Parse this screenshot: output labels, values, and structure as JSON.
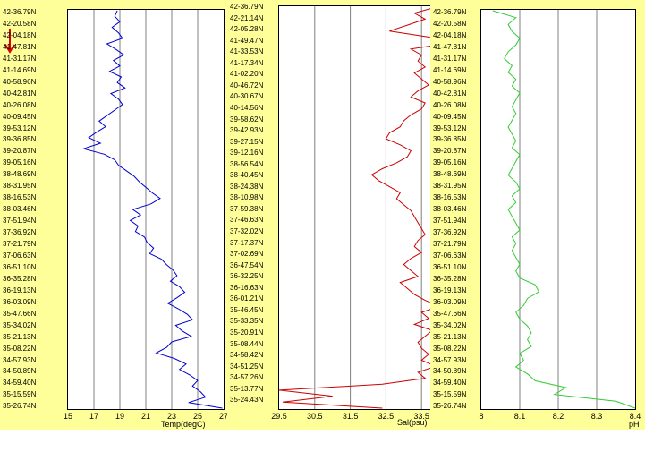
{
  "latitude_labels": [
    "42-36.79N",
    "42-20.58N",
    "42-04.18N",
    "41-47.81N",
    "41-31.17N",
    "41-14.69N",
    "40-58.96N",
    "40-42.81N",
    "40-26.08N",
    "40-09.45N",
    "39-53.12N",
    "39-36.85N",
    "39-20.87N",
    "39-05.16N",
    "38-48.69N",
    "38-31.95N",
    "38-16.53N",
    "38-03.46N",
    "37-51.94N",
    "37-36.92N",
    "37-21.79N",
    "37-06.63N",
    "36-51.10N",
    "36-35.28N",
    "36-19.13N",
    "36-03.09N",
    "35-47.66N",
    "35-34.02N",
    "35-21.13N",
    "35-08.22N",
    "34-57.93N",
    "34-50.89N",
    "34-59.40N",
    "35-15.59N",
    "35-26.74N"
  ],
  "latitude_labels_sal": [
    "42-36.79N",
    "42-21.14N",
    "42-05.28N",
    "41-49.47N",
    "41-33.53N",
    "41-17.34N",
    "41-02.20N",
    "40-46.72N",
    "40-30.67N",
    "40-14.56N",
    "39-58.62N",
    "39-42.93N",
    "39-27.15N",
    "39-12.16N",
    "38-56.54N",
    "38-40.45N",
    "38-24.38N",
    "38-10.98N",
    "37-59.38N",
    "37-46.63N",
    "37-32.02N",
    "37-17.37N",
    "37-02.69N",
    "36-47.54N",
    "36-32.25N",
    "36-16.63N",
    "36-01.21N",
    "35-46.45N",
    "35-33.35N",
    "35-20.91N",
    "35-08.44N",
    "34-58.42N",
    "34-51.25N",
    "34-57.26N",
    "35-13.77N",
    "35-24.43N"
  ],
  "chart_data": [
    {
      "type": "line",
      "xlabel": "Temp(degC)",
      "xlim": [
        15,
        27
      ],
      "xticks": [
        "15",
        "17",
        "19",
        "21",
        "23",
        "25",
        "27"
      ],
      "color": "#0000cc",
      "series": [
        {
          "values": [
            18.8,
            18.6,
            19.0,
            18.4,
            18.9,
            19.2,
            18.0,
            18.7,
            19.3,
            18.5,
            19.0,
            18.2,
            19.1,
            18.8,
            19.4,
            18.3,
            18.9,
            19.2,
            18.6,
            18.0,
            17.4,
            17.9,
            17.2,
            16.6,
            17.5,
            16.2,
            17.8,
            18.6,
            18.9,
            19.5,
            20.1,
            20.5,
            21.0,
            21.5,
            22.1,
            21.4,
            20.0,
            20.6,
            19.8,
            20.4,
            20.2,
            20.9,
            21.1,
            21.6,
            21.3,
            22.2,
            22.6,
            23.1,
            23.4,
            22.9,
            23.6,
            24.0,
            23.4,
            22.7,
            23.5,
            24.2,
            24.6,
            23.3,
            23.8,
            24.5,
            23.0,
            22.6,
            21.8,
            23.2,
            24.1,
            23.6,
            24.4,
            25.0,
            24.6,
            25.2,
            25.6,
            24.3,
            26.9
          ]
        }
      ]
    },
    {
      "type": "line",
      "xlabel": "Sal(psu)",
      "xlim": [
        29.5,
        34.5
      ],
      "xticks": [
        "29.5",
        "30.5",
        "31.5",
        "32.5",
        "33.5",
        "34.5"
      ],
      "color": "#cc0000",
      "series": [
        {
          "values": [
            33.9,
            33.3,
            33.6,
            33.1,
            32.6,
            33.7,
            34.3,
            33.2,
            33.5,
            33.4,
            33.6,
            33.3,
            33.5,
            33.7,
            33.4,
            33.2,
            33.6,
            33.5,
            33.2,
            33.0,
            32.9,
            32.6,
            32.5,
            32.9,
            33.2,
            33.1,
            32.8,
            32.4,
            32.1,
            32.3,
            32.6,
            32.9,
            32.8,
            33.0,
            33.2,
            33.3,
            33.4,
            33.5,
            33.6,
            33.4,
            33.3,
            33.5,
            33.2,
            33.0,
            33.2,
            33.4,
            32.9,
            33.1,
            33.3,
            33.6,
            34.0,
            33.5,
            33.7,
            33.3,
            33.8,
            33.6,
            33.4,
            33.5,
            33.7,
            33.5,
            33.9,
            33.4,
            33.6,
            32.4,
            29.5,
            31.0,
            29.6,
            32.4
          ]
        }
      ]
    },
    {
      "type": "line",
      "xlabel": "pH",
      "xlim": [
        8,
        8.4
      ],
      "xticks": [
        "8",
        "8.1",
        "8.2",
        "8.3",
        "8.4"
      ],
      "color": "#33cc33",
      "series": [
        {
          "values": [
            8.03,
            8.09,
            8.07,
            8.08,
            8.1,
            8.09,
            8.07,
            8.06,
            8.08,
            8.07,
            8.09,
            8.08,
            8.1,
            8.09,
            8.08,
            8.09,
            8.08,
            8.07,
            8.08,
            8.09,
            8.08,
            8.1,
            8.09,
            8.08,
            8.07,
            8.09,
            8.1,
            8.08,
            8.09,
            8.07,
            8.08,
            8.09,
            8.1,
            8.08,
            8.09,
            8.08,
            8.09,
            8.1,
            8.09,
            8.1,
            8.14,
            8.15,
            8.12,
            8.11,
            8.09,
            8.1,
            8.12,
            8.13,
            8.12,
            8.13,
            8.1,
            8.11,
            8.09,
            8.12,
            8.14,
            8.22,
            8.19,
            8.35,
            8.4
          ]
        }
      ]
    }
  ]
}
